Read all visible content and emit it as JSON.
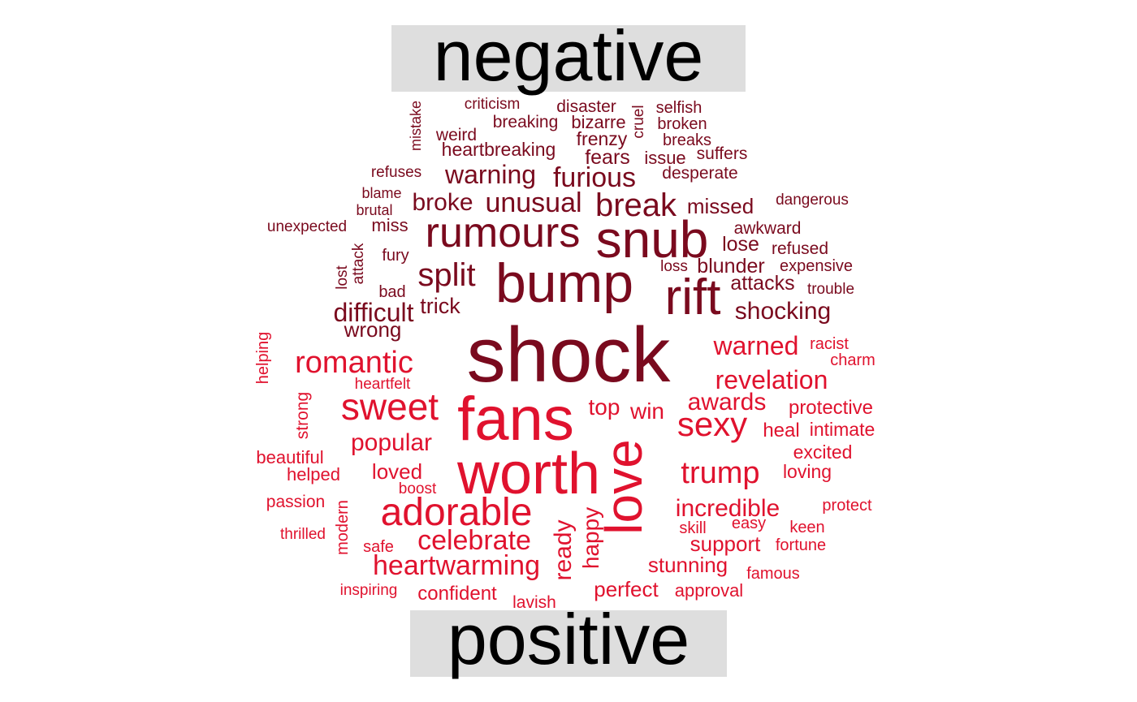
{
  "chart_data": {
    "type": "wordcloud",
    "groups": [
      {
        "name": "negative",
        "color": "#7a0a1e",
        "header_bg": "#dedede",
        "words": [
          {
            "text": "shock",
            "size": 96
          },
          {
            "text": "bump",
            "size": 68
          },
          {
            "text": "snub",
            "size": 64
          },
          {
            "text": "rift",
            "size": 62
          },
          {
            "text": "rumours",
            "size": 52
          },
          {
            "text": "break",
            "size": 40
          },
          {
            "text": "split",
            "size": 40
          },
          {
            "text": "unusual",
            "size": 34
          },
          {
            "text": "furious",
            "size": 34
          },
          {
            "text": "warning",
            "size": 32
          },
          {
            "text": "difficult",
            "size": 32
          },
          {
            "text": "shocking",
            "size": 30
          },
          {
            "text": "broke",
            "size": 30
          },
          {
            "text": "blunder",
            "size": 25
          },
          {
            "text": "trick",
            "size": 27
          },
          {
            "text": "wrong",
            "size": 26
          },
          {
            "text": "missed",
            "size": 26
          },
          {
            "text": "attacks",
            "size": 25
          },
          {
            "text": "lose",
            "size": 25
          },
          {
            "text": "fears",
            "size": 25
          },
          {
            "text": "frenzy",
            "size": 23
          },
          {
            "text": "heartbreaking",
            "size": 23
          },
          {
            "text": "bizarre",
            "size": 22
          },
          {
            "text": "issue",
            "size": 22
          },
          {
            "text": "breaking",
            "size": 21
          },
          {
            "text": "miss",
            "size": 22
          },
          {
            "text": "disaster",
            "size": 21
          },
          {
            "text": "weird",
            "size": 21
          },
          {
            "text": "suffers",
            "size": 21
          },
          {
            "text": "awkward",
            "size": 21
          },
          {
            "text": "refused",
            "size": 21
          },
          {
            "text": "desperate",
            "size": 21
          },
          {
            "text": "breaks",
            "size": 20
          },
          {
            "text": "broken",
            "size": 20
          },
          {
            "text": "selfish",
            "size": 20
          },
          {
            "text": "fury",
            "size": 20
          },
          {
            "text": "bad",
            "size": 20
          },
          {
            "text": "expensive",
            "size": 20
          },
          {
            "text": "criticism",
            "size": 19
          },
          {
            "text": "refuses",
            "size": 19
          },
          {
            "text": "loss",
            "size": 19
          },
          {
            "text": "unexpected",
            "size": 19
          },
          {
            "text": "trouble",
            "size": 19
          },
          {
            "text": "dangerous",
            "size": 19
          },
          {
            "text": "blame",
            "size": 18
          },
          {
            "text": "brutal",
            "size": 18
          },
          {
            "text": "mistake",
            "size": 18
          },
          {
            "text": "cruel",
            "size": 19
          },
          {
            "text": "attack",
            "size": 19
          },
          {
            "text": "lost",
            "size": 19
          }
        ]
      },
      {
        "name": "positive",
        "color": "#e0122e",
        "header_bg": "#dedede",
        "words": [
          {
            "text": "fans",
            "size": 76
          },
          {
            "text": "worth",
            "size": 72
          },
          {
            "text": "love",
            "size": 64
          },
          {
            "text": "adorable",
            "size": 48
          },
          {
            "text": "sweet",
            "size": 46
          },
          {
            "text": "sexy",
            "size": 42
          },
          {
            "text": "romantic",
            "size": 38
          },
          {
            "text": "trump",
            "size": 38
          },
          {
            "text": "celebrate",
            "size": 34
          },
          {
            "text": "heartwarming",
            "size": 34
          },
          {
            "text": "revelation",
            "size": 32
          },
          {
            "text": "warned",
            "size": 32
          },
          {
            "text": "awards",
            "size": 30
          },
          {
            "text": "popular",
            "size": 30
          },
          {
            "text": "incredible",
            "size": 30
          },
          {
            "text": "top",
            "size": 28
          },
          {
            "text": "win",
            "size": 28
          },
          {
            "text": "ready",
            "size": 30
          },
          {
            "text": "happy",
            "size": 28
          },
          {
            "text": "support",
            "size": 26
          },
          {
            "text": "stunning",
            "size": 26
          },
          {
            "text": "loved",
            "size": 26
          },
          {
            "text": "perfect",
            "size": 26
          },
          {
            "text": "protective",
            "size": 24
          },
          {
            "text": "heal",
            "size": 24
          },
          {
            "text": "intimate",
            "size": 23
          },
          {
            "text": "confident",
            "size": 24
          },
          {
            "text": "loving",
            "size": 23
          },
          {
            "text": "excited",
            "size": 23
          },
          {
            "text": "approval",
            "size": 22
          },
          {
            "text": "beautiful",
            "size": 22
          },
          {
            "text": "helped",
            "size": 22
          },
          {
            "text": "lavish",
            "size": 21
          },
          {
            "text": "strong",
            "size": 21
          },
          {
            "text": "helping",
            "size": 20
          },
          {
            "text": "passion",
            "size": 21
          },
          {
            "text": "modern",
            "size": 20
          },
          {
            "text": "easy",
            "size": 20
          },
          {
            "text": "skill",
            "size": 20
          },
          {
            "text": "keen",
            "size": 20
          },
          {
            "text": "fortune",
            "size": 20
          },
          {
            "text": "famous",
            "size": 20
          },
          {
            "text": "protect",
            "size": 20
          },
          {
            "text": "charm",
            "size": 20
          },
          {
            "text": "racist",
            "size": 20
          },
          {
            "text": "heartfelt",
            "size": 19
          },
          {
            "text": "boost",
            "size": 19
          },
          {
            "text": "thrilled",
            "size": 19
          },
          {
            "text": "safe",
            "size": 20
          },
          {
            "text": "inspiring",
            "size": 19
          }
        ]
      }
    ]
  }
}
